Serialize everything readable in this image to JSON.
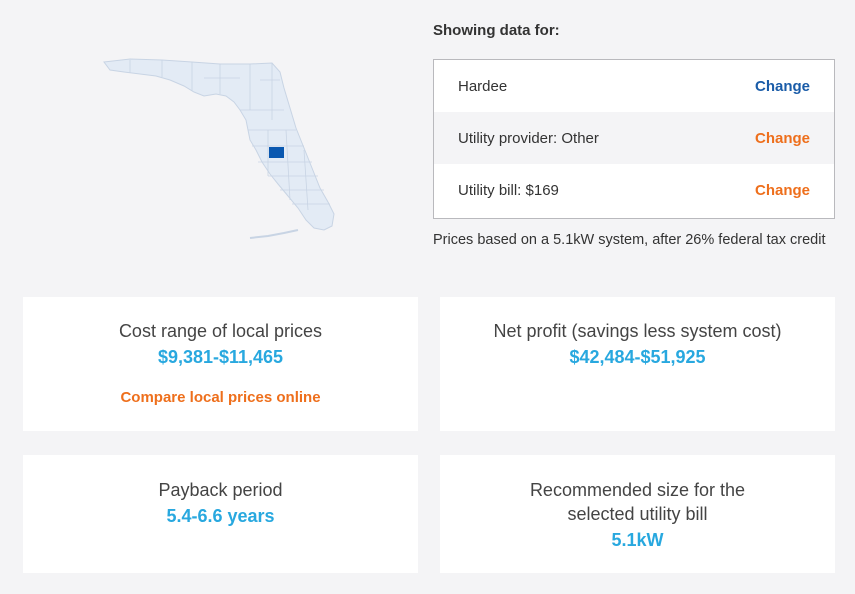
{
  "map": {
    "region_color": "#e3ebf5",
    "border_color": "#c8d4e4",
    "highlight_color": "#0a58b0"
  },
  "selection": {
    "heading": "Showing data for:",
    "rows": [
      {
        "label": "Hardee",
        "action": "Change"
      },
      {
        "label": "Utility provider: Other",
        "action": "Change"
      },
      {
        "label": "Utility bill: $169",
        "action": "Change"
      }
    ],
    "note": "Prices based on a 5.1kW system, after 26% federal tax credit"
  },
  "cards": {
    "cost": {
      "title": "Cost range of local prices",
      "value": "$9,381-$11,465",
      "link": "Compare local prices online"
    },
    "profit": {
      "title": "Net profit (savings less system cost)",
      "value": "$42,484-$51,925"
    },
    "payback": {
      "title": "Payback period",
      "value": "5.4-6.6 years"
    },
    "size": {
      "title": "Recommended size for the selected utility bill",
      "value": "5.1kW"
    }
  },
  "colors": {
    "accent_blue": "#28a8df",
    "link_blue": "#1a5ca8",
    "link_orange": "#ee6f1c"
  }
}
